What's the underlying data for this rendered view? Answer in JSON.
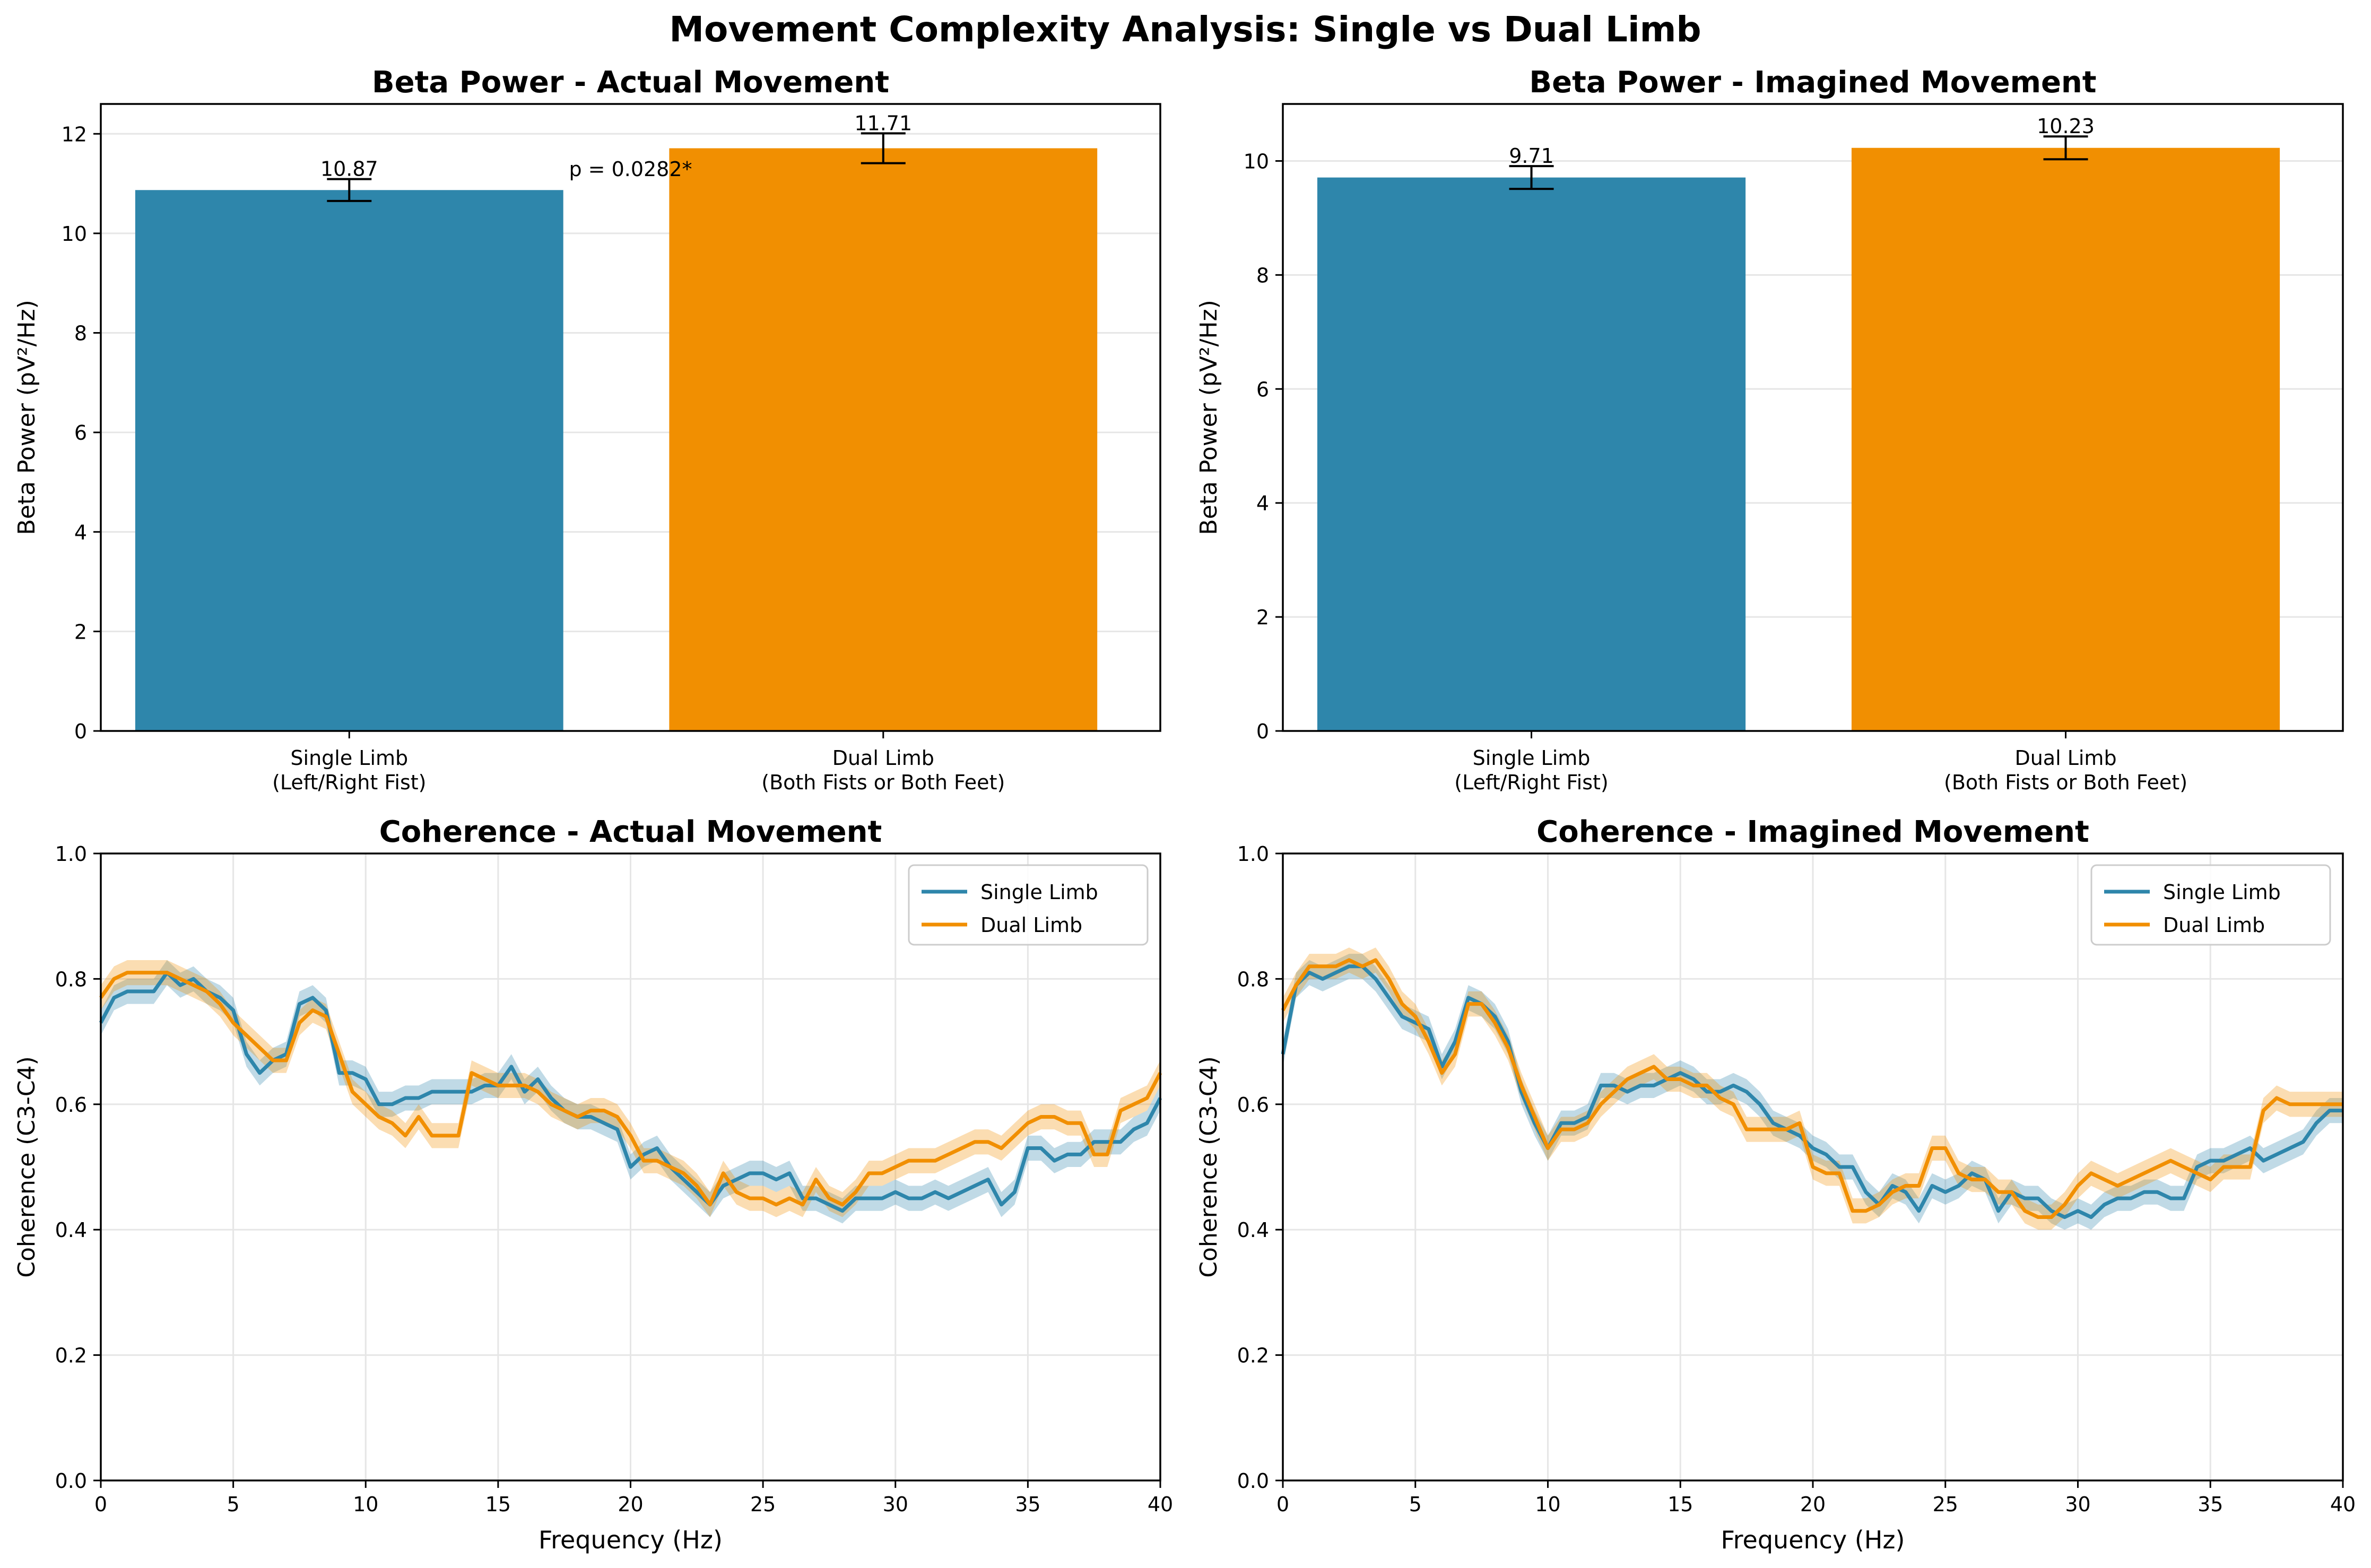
{
  "figure": {
    "suptitle": "Movement Complexity Analysis: Single vs Dual Limb"
  },
  "colors": {
    "single": "#2E86AB",
    "dual": "#F18F01",
    "grid": "#e6e6e6",
    "axis": "#000000"
  },
  "chart_data": [
    {
      "type": "bar",
      "title": "Beta Power - Actual Movement",
      "xlabel": "",
      "ylabel": "Beta Power (pV²/Hz)",
      "categories": [
        "Single Limb\n(Left/Right Fist)",
        "Dual Limb\n(Both Fists or Both Feet)"
      ],
      "values": [
        10.87,
        11.71
      ],
      "value_labels": [
        "10.87",
        "11.71"
      ],
      "errors": [
        0.22,
        0.3
      ],
      "colors": [
        "#2E86AB",
        "#F18F01"
      ],
      "ylim": [
        0,
        12.6
      ],
      "yticks": [
        0,
        2,
        4,
        6,
        8,
        10,
        12
      ],
      "annotation": "p = 0.0282*",
      "grid": true
    },
    {
      "type": "bar",
      "title": "Beta Power - Imagined Movement",
      "xlabel": "",
      "ylabel": "Beta Power (pV²/Hz)",
      "categories": [
        "Single Limb\n(Left/Right Fist)",
        "Dual Limb\n(Both Fists or Both Feet)"
      ],
      "values": [
        9.71,
        10.23
      ],
      "value_labels": [
        "9.71",
        "10.23"
      ],
      "errors": [
        0.2,
        0.2
      ],
      "colors": [
        "#2E86AB",
        "#F18F01"
      ],
      "ylim": [
        0,
        11.0
      ],
      "yticks": [
        0,
        2,
        4,
        6,
        8,
        10
      ],
      "grid": true
    },
    {
      "type": "line",
      "title": "Coherence - Actual Movement",
      "xlabel": "Frequency (Hz)",
      "ylabel": "Coherence (C3-C4)",
      "xlim": [
        0,
        40
      ],
      "ylim": [
        0,
        1
      ],
      "xticks": [
        0,
        5,
        10,
        15,
        20,
        25,
        30,
        35,
        40
      ],
      "yticks": [
        0.0,
        0.2,
        0.4,
        0.6,
        0.8,
        1.0
      ],
      "legend": "top-right",
      "grid": true,
      "band": 0.02,
      "x": [
        0,
        0.5,
        1,
        1.5,
        2,
        2.5,
        3,
        3.5,
        4,
        4.5,
        5,
        5.5,
        6,
        6.5,
        7,
        7.5,
        8,
        8.5,
        9,
        9.5,
        10,
        10.5,
        11,
        11.5,
        12,
        12.5,
        13,
        13.5,
        14,
        14.5,
        15,
        15.5,
        16,
        16.5,
        17,
        17.5,
        18,
        18.5,
        19,
        19.5,
        20,
        20.5,
        21,
        21.5,
        22,
        22.5,
        23,
        23.5,
        24,
        24.5,
        25,
        25.5,
        26,
        26.5,
        27,
        27.5,
        28,
        28.5,
        29,
        29.5,
        30,
        30.5,
        31,
        31.5,
        32,
        32.5,
        33,
        33.5,
        34,
        34.5,
        35,
        35.5,
        36,
        36.5,
        37,
        37.5,
        38,
        38.5,
        39,
        39.5,
        40
      ],
      "series": [
        {
          "name": "Single Limb",
          "color": "#2E86AB",
          "values": [
            0.73,
            0.77,
            0.78,
            0.78,
            0.78,
            0.81,
            0.79,
            0.8,
            0.78,
            0.77,
            0.75,
            0.68,
            0.65,
            0.67,
            0.68,
            0.76,
            0.77,
            0.75,
            0.65,
            0.65,
            0.64,
            0.6,
            0.6,
            0.61,
            0.61,
            0.62,
            0.62,
            0.62,
            0.62,
            0.63,
            0.63,
            0.66,
            0.62,
            0.64,
            0.61,
            0.59,
            0.58,
            0.58,
            0.57,
            0.56,
            0.5,
            0.52,
            0.53,
            0.5,
            0.48,
            0.46,
            0.44,
            0.47,
            0.48,
            0.49,
            0.49,
            0.48,
            0.49,
            0.45,
            0.45,
            0.44,
            0.43,
            0.45,
            0.45,
            0.45,
            0.46,
            0.45,
            0.45,
            0.46,
            0.45,
            0.46,
            0.47,
            0.48,
            0.44,
            0.46,
            0.53,
            0.53,
            0.51,
            0.52,
            0.52,
            0.54,
            0.54,
            0.54,
            0.56,
            0.57,
            0.61
          ]
        },
        {
          "name": "Dual Limb",
          "color": "#F18F01",
          "values": [
            0.77,
            0.8,
            0.81,
            0.81,
            0.81,
            0.81,
            0.8,
            0.79,
            0.78,
            0.76,
            0.73,
            0.71,
            0.69,
            0.67,
            0.67,
            0.73,
            0.75,
            0.74,
            0.68,
            0.62,
            0.6,
            0.58,
            0.57,
            0.55,
            0.58,
            0.55,
            0.55,
            0.55,
            0.65,
            0.64,
            0.63,
            0.63,
            0.63,
            0.62,
            0.6,
            0.59,
            0.58,
            0.59,
            0.59,
            0.58,
            0.55,
            0.51,
            0.51,
            0.5,
            0.49,
            0.47,
            0.44,
            0.49,
            0.46,
            0.45,
            0.45,
            0.44,
            0.45,
            0.44,
            0.48,
            0.45,
            0.44,
            0.46,
            0.49,
            0.49,
            0.5,
            0.51,
            0.51,
            0.51,
            0.52,
            0.53,
            0.54,
            0.54,
            0.53,
            0.55,
            0.57,
            0.58,
            0.58,
            0.57,
            0.57,
            0.52,
            0.52,
            0.59,
            0.6,
            0.61,
            0.65
          ]
        }
      ]
    },
    {
      "type": "line",
      "title": "Coherence - Imagined Movement",
      "xlabel": "Frequency (Hz)",
      "ylabel": "Coherence (C3-C4)",
      "xlim": [
        0,
        40
      ],
      "ylim": [
        0,
        1
      ],
      "xticks": [
        0,
        5,
        10,
        15,
        20,
        25,
        30,
        35,
        40
      ],
      "yticks": [
        0.0,
        0.2,
        0.4,
        0.6,
        0.8,
        1.0
      ],
      "legend": "top-right",
      "grid": true,
      "band": 0.02,
      "x": [
        0,
        0.5,
        1,
        1.5,
        2,
        2.5,
        3,
        3.5,
        4,
        4.5,
        5,
        5.5,
        6,
        6.5,
        7,
        7.5,
        8,
        8.5,
        9,
        9.5,
        10,
        10.5,
        11,
        11.5,
        12,
        12.5,
        13,
        13.5,
        14,
        14.5,
        15,
        15.5,
        16,
        16.5,
        17,
        17.5,
        18,
        18.5,
        19,
        19.5,
        20,
        20.5,
        21,
        21.5,
        22,
        22.5,
        23,
        23.5,
        24,
        24.5,
        25,
        25.5,
        26,
        26.5,
        27,
        27.5,
        28,
        28.5,
        29,
        29.5,
        30,
        30.5,
        31,
        31.5,
        32,
        32.5,
        33,
        33.5,
        34,
        34.5,
        35,
        35.5,
        36,
        36.5,
        37,
        37.5,
        38,
        38.5,
        39,
        39.5,
        40
      ],
      "series": [
        {
          "name": "Single Limb",
          "color": "#2E86AB",
          "values": [
            0.68,
            0.79,
            0.81,
            0.8,
            0.81,
            0.82,
            0.82,
            0.8,
            0.77,
            0.74,
            0.73,
            0.72,
            0.66,
            0.7,
            0.77,
            0.76,
            0.74,
            0.7,
            0.62,
            0.57,
            0.53,
            0.57,
            0.57,
            0.58,
            0.63,
            0.63,
            0.62,
            0.63,
            0.63,
            0.64,
            0.65,
            0.64,
            0.62,
            0.62,
            0.63,
            0.62,
            0.6,
            0.57,
            0.56,
            0.55,
            0.53,
            0.52,
            0.5,
            0.5,
            0.46,
            0.44,
            0.47,
            0.46,
            0.43,
            0.47,
            0.46,
            0.47,
            0.49,
            0.48,
            0.43,
            0.46,
            0.45,
            0.45,
            0.43,
            0.42,
            0.43,
            0.42,
            0.44,
            0.45,
            0.45,
            0.46,
            0.46,
            0.45,
            0.45,
            0.5,
            0.51,
            0.51,
            0.52,
            0.53,
            0.51,
            0.52,
            0.53,
            0.54,
            0.57,
            0.59,
            0.59
          ]
        },
        {
          "name": "Dual Limb",
          "color": "#F18F01",
          "values": [
            0.75,
            0.79,
            0.82,
            0.82,
            0.82,
            0.83,
            0.82,
            0.83,
            0.8,
            0.76,
            0.74,
            0.7,
            0.65,
            0.68,
            0.76,
            0.76,
            0.73,
            0.69,
            0.63,
            0.58,
            0.53,
            0.56,
            0.56,
            0.57,
            0.6,
            0.62,
            0.64,
            0.65,
            0.66,
            0.64,
            0.64,
            0.63,
            0.63,
            0.61,
            0.6,
            0.56,
            0.56,
            0.56,
            0.56,
            0.57,
            0.5,
            0.49,
            0.49,
            0.43,
            0.43,
            0.44,
            0.46,
            0.47,
            0.47,
            0.53,
            0.53,
            0.49,
            0.48,
            0.48,
            0.46,
            0.46,
            0.43,
            0.42,
            0.42,
            0.44,
            0.47,
            0.49,
            0.48,
            0.47,
            0.48,
            0.49,
            0.5,
            0.51,
            0.5,
            0.49,
            0.48,
            0.5,
            0.5,
            0.5,
            0.59,
            0.61,
            0.6,
            0.6,
            0.6,
            0.6,
            0.6
          ]
        }
      ]
    }
  ]
}
